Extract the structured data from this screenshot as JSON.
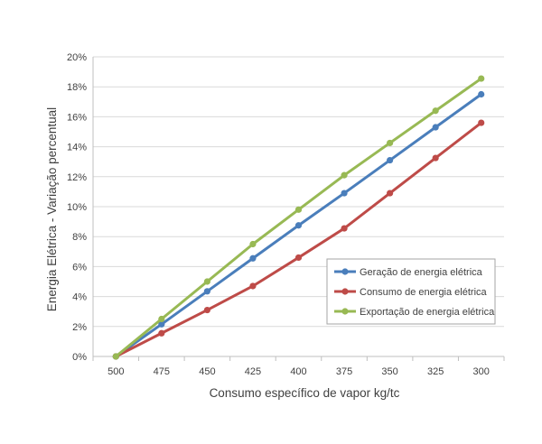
{
  "chart_data": {
    "type": "line",
    "title": "",
    "xlabel": "Consumo específico de vapor kg/tc",
    "ylabel": "Energia Elétrica - Variação percentual",
    "categories": [
      "500",
      "475",
      "450",
      "425",
      "400",
      "375",
      "350",
      "325",
      "300"
    ],
    "y_ticks": [
      "0%",
      "2%",
      "4%",
      "6%",
      "8%",
      "10%",
      "12%",
      "14%",
      "16%",
      "18%",
      "20%"
    ],
    "ylim": [
      0,
      20
    ],
    "grid": true,
    "legend_position": "bottom-right",
    "series": [
      {
        "name": "Geração de energia elétrica",
        "color": "#4a7ebb",
        "values": [
          0,
          2.15,
          4.35,
          6.55,
          8.75,
          10.9,
          13.1,
          15.3,
          17.5
        ]
      },
      {
        "name": "Consumo de energia elétrica",
        "color": "#be4b48",
        "values": [
          0,
          1.55,
          3.1,
          4.7,
          6.6,
          8.55,
          10.9,
          13.25,
          15.6
        ]
      },
      {
        "name": "Exportação de energia elétrica",
        "color": "#98b954",
        "values": [
          0,
          2.5,
          5.0,
          7.5,
          9.8,
          12.1,
          14.25,
          16.4,
          18.55
        ]
      }
    ]
  }
}
